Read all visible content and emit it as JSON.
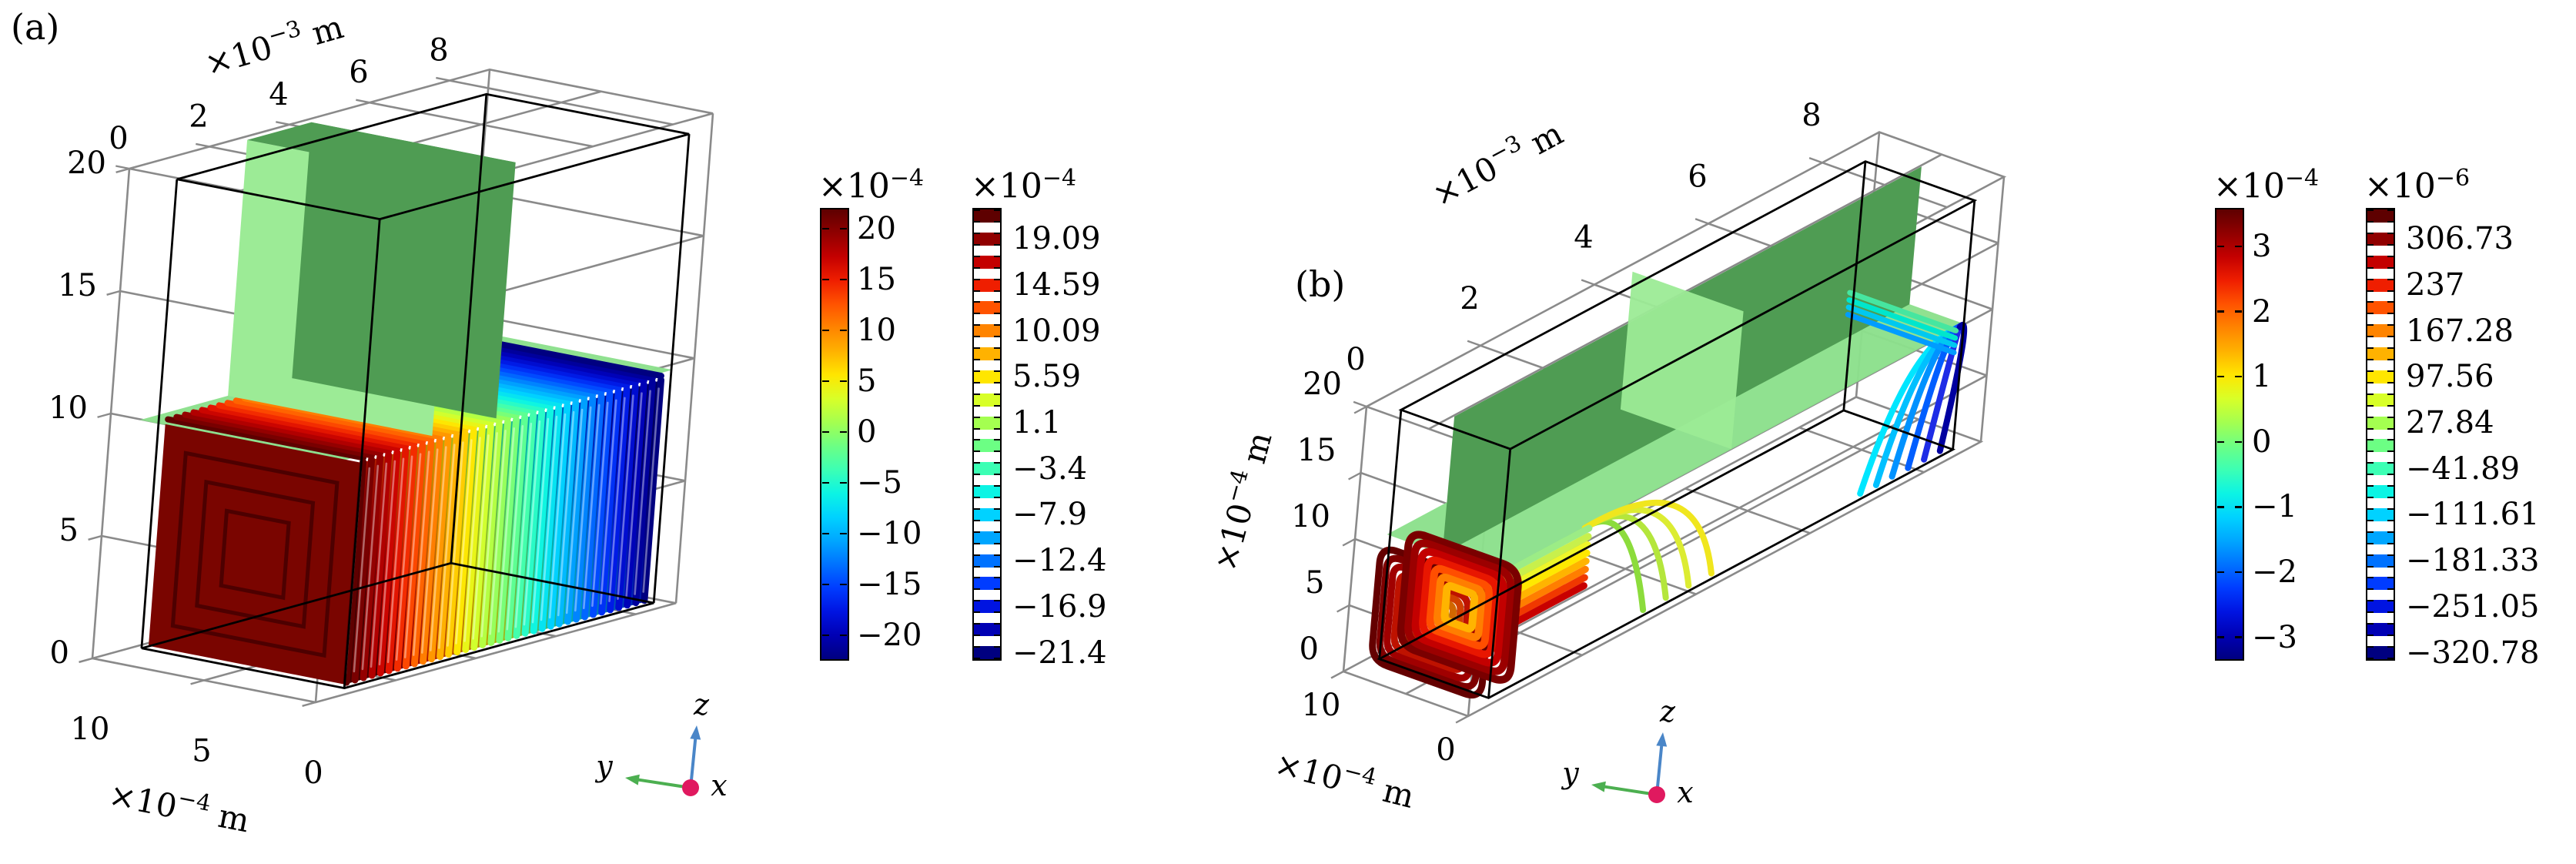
{
  "figure": {
    "background": "#ffffff"
  },
  "panels": [
    {
      "id": "a",
      "label": "(a)",
      "x_axis": {
        "title": {
          "prefix": "×10",
          "exponent": "−3",
          "suffix": " m"
        },
        "tick_labels": [
          "0",
          "2",
          "4",
          "6",
          "8"
        ],
        "tick_values": [
          0,
          2,
          4,
          6,
          8
        ]
      },
      "y_axis": {
        "title": {
          "prefix": "×10",
          "exponent": "−4",
          "suffix": " m"
        },
        "tick_labels": [
          "10",
          "5",
          "0"
        ],
        "tick_values": [
          10,
          5,
          0
        ]
      },
      "z_axis": {
        "title": null,
        "tick_labels": [
          "20",
          "15",
          "10",
          "5",
          "0"
        ],
        "tick_values": [
          20,
          15,
          10,
          5,
          0
        ]
      },
      "triad": {
        "x": "x",
        "y": "y",
        "z": "z"
      },
      "colorbars": [
        {
          "style": "continuous",
          "exponent": {
            "prefix": "×10",
            "exponent": "−4"
          },
          "tick_labels": [
            "20",
            "15",
            "10",
            "5",
            "0",
            "−5",
            "−10",
            "−15",
            "−20"
          ],
          "tick_values": [
            20,
            15,
            10,
            5,
            0,
            -5,
            -10,
            -15,
            -20
          ],
          "value_max": 22.05,
          "value_min": -22.5
        },
        {
          "style": "discrete",
          "exponent": {
            "prefix": "×10",
            "exponent": "−4"
          },
          "tick_labels": [
            "19.09",
            "14.59",
            "10.09",
            "5.59",
            "1.1",
            "−3.4",
            "−7.9",
            "−12.4",
            "−16.9",
            "−21.4"
          ]
        }
      ]
    },
    {
      "id": "b",
      "label": "(b)",
      "x_axis": {
        "title": {
          "prefix": "×10",
          "exponent": "−3",
          "suffix": " m"
        },
        "tick_labels": [
          "0",
          "2",
          "4",
          "6",
          "8"
        ],
        "tick_values": [
          0,
          2,
          4,
          6,
          8
        ]
      },
      "y_axis": {
        "title": {
          "prefix": "×10",
          "exponent": "−4",
          "suffix": " m"
        },
        "tick_labels": [
          "10",
          "0"
        ],
        "tick_values": [
          10,
          0
        ]
      },
      "z_axis": {
        "title": {
          "prefix": "×10",
          "exponent": "−4",
          "suffix": " m"
        },
        "tick_labels": [
          "20",
          "15",
          "10",
          "5",
          "0"
        ],
        "tick_values": [
          20,
          15,
          10,
          5,
          0
        ]
      },
      "triad": {
        "x": "x",
        "y": "y",
        "z": "z"
      },
      "colorbars": [
        {
          "style": "continuous",
          "exponent": {
            "prefix": "×10",
            "exponent": "−4"
          },
          "tick_labels": [
            "3",
            "2",
            "1",
            "0",
            "−1",
            "−2",
            "−3"
          ],
          "tick_values": [
            3,
            2,
            1,
            0,
            -1,
            -2,
            -3
          ],
          "value_max": 3.59,
          "value_min": -3.36
        },
        {
          "style": "discrete",
          "exponent": {
            "prefix": "×10",
            "exponent": "−6"
          },
          "tick_labels": [
            "306.73",
            "237",
            "167.28",
            "97.56",
            "27.84",
            "−41.89",
            "−111.61",
            "−181.33",
            "−251.05",
            "−320.78"
          ]
        }
      ]
    }
  ],
  "colors": {
    "jet_bands": [
      "#5e0000",
      "#900000",
      "#c40000",
      "#ef1e00",
      "#ff5300",
      "#ff8400",
      "#ffb200",
      "#ffe600",
      "#d8ff28",
      "#a4ff50",
      "#6cff84",
      "#3cffb4",
      "#0cf4e4",
      "#00d2ff",
      "#00a6ff",
      "#0072ff",
      "#003cff",
      "#0014e1",
      "#0000b4",
      "#000080"
    ],
    "plane_light": "#8ce08c",
    "plane_dark": "#4f9c53",
    "plane_cross": "#9ceb96",
    "tube_face_dark": "#7a0500",
    "triad_z": "#4a86c8",
    "triad_y": "#4caf50",
    "triad_x_dot": "#e0195f",
    "box_gray": "#8a8a8a",
    "box_black": "#000000"
  },
  "chart_data": [
    {
      "panel": "a",
      "type": "3d-contour-slice",
      "axes": {
        "x": {
          "label": "×10⁻³ m",
          "ticks": [
            0,
            2,
            4,
            6,
            8
          ]
        },
        "y": {
          "label": "×10⁻⁴ m",
          "ticks": [
            10,
            5,
            0
          ]
        },
        "z": {
          "label": null,
          "ticks": [
            20,
            15,
            10,
            5,
            0
          ]
        }
      },
      "colorbar_continuous": {
        "scale": "×10⁻⁴",
        "ticks": [
          20,
          15,
          10,
          5,
          0,
          -5,
          -10,
          -15,
          -20
        ]
      },
      "colorbar_discrete": {
        "scale": "×10⁻⁴",
        "levels": [
          19.09,
          14.59,
          10.09,
          5.59,
          1.1,
          -3.4,
          -7.9,
          -12.4,
          -16.9,
          -21.4
        ]
      },
      "legend_position": "right",
      "features": [
        "gray wireframe axes box",
        "black domain box",
        "green vertical slice slab",
        "green horizontal slice plane",
        "rainbow contour tube bundle colored red(left) to blue(right)",
        "xyz coordinate triad"
      ]
    },
    {
      "panel": "b",
      "type": "3d-contour-slice",
      "axes": {
        "x": {
          "label": "×10⁻³ m",
          "ticks": [
            0,
            2,
            4,
            6,
            8
          ]
        },
        "y": {
          "label": "×10⁻⁴ m",
          "ticks": [
            10,
            0
          ]
        },
        "z": {
          "label": "×10⁻⁴ m",
          "ticks": [
            20,
            15,
            10,
            5,
            0
          ]
        }
      },
      "colorbar_continuous": {
        "scale": "×10⁻⁴",
        "ticks": [
          3,
          2,
          1,
          0,
          -1,
          -2,
          -3
        ]
      },
      "colorbar_discrete": {
        "scale": "×10⁻⁶",
        "levels": [
          306.73,
          237,
          167.28,
          97.56,
          27.84,
          -41.89,
          -111.61,
          -181.33,
          -251.05,
          -320.78
        ]
      },
      "legend_position": "right",
      "features": [
        "gray wireframe axes box",
        "black domain box",
        "long dark-green vertical slice plane",
        "light-green horizontal slice plane",
        "light-green transverse slice plane",
        "nested red/orange field-line loops at left end",
        "yellow-green arcs mid-length",
        "blue/cyan arcs at right end",
        "xyz coordinate triad"
      ]
    }
  ]
}
